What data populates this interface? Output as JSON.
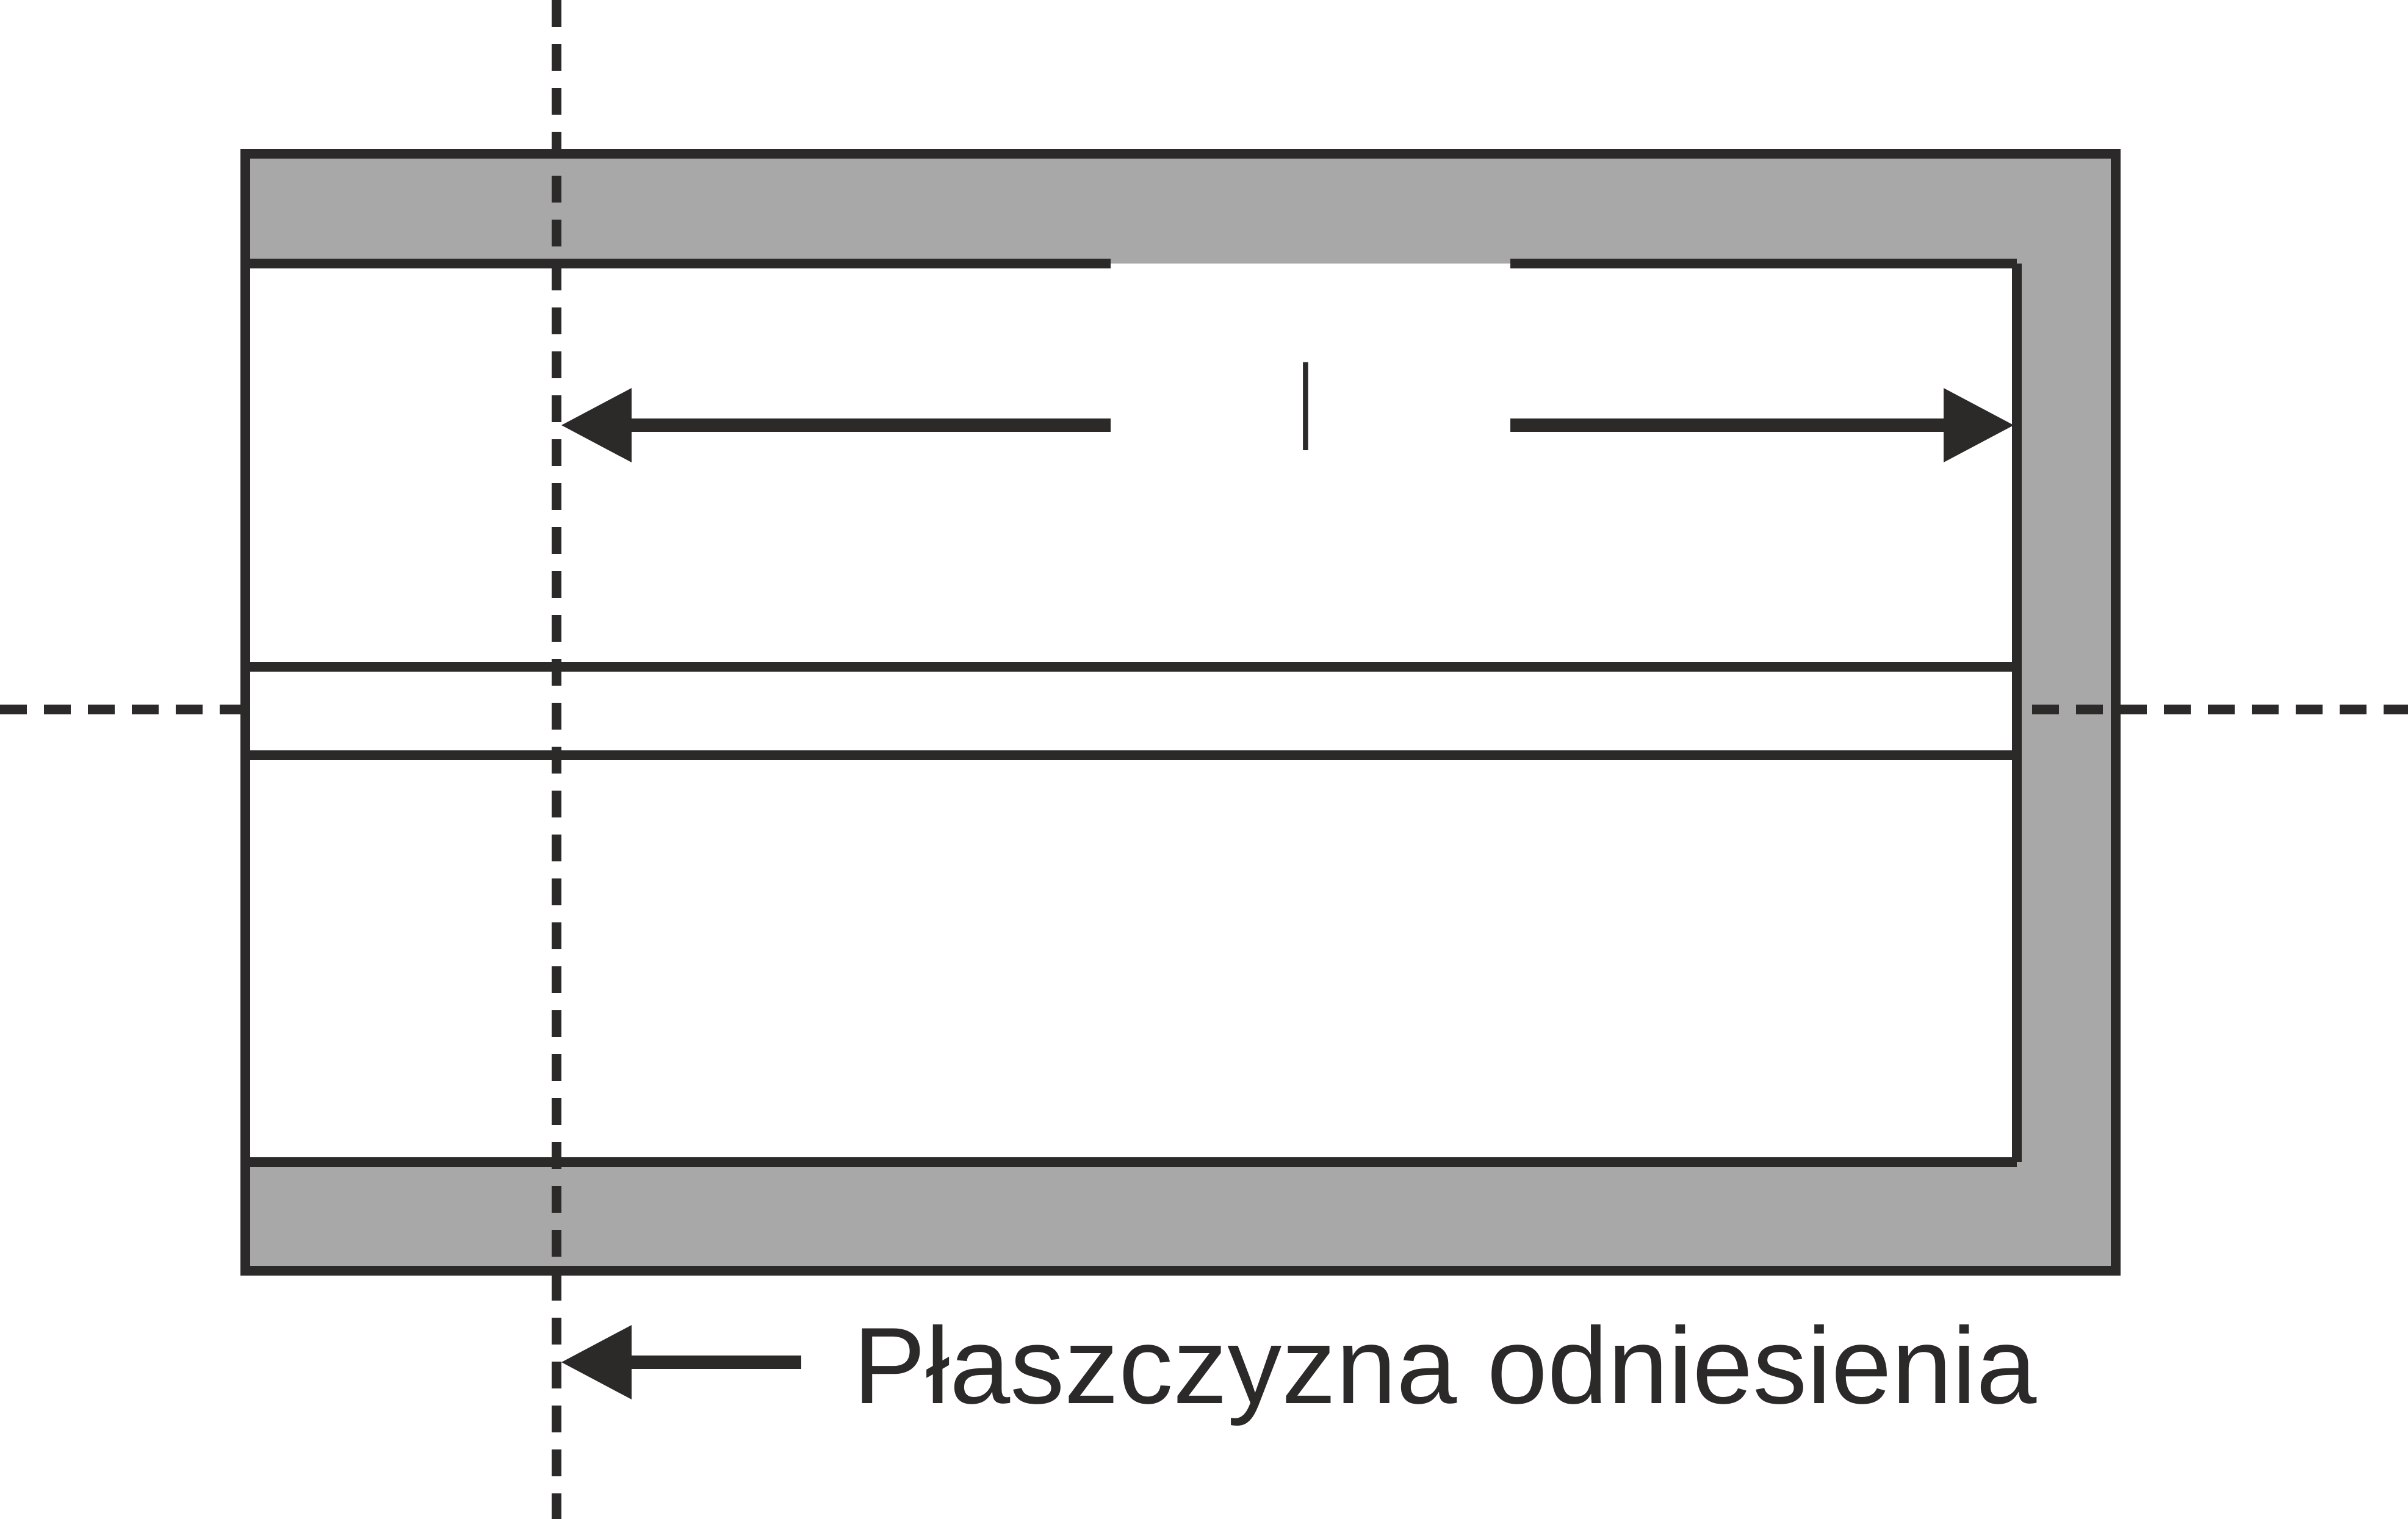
{
  "diagram": {
    "dimension_label": "l",
    "reference_plane_label": "Płaszczyzna odniesienia"
  },
  "colors": {
    "stroke": "#2b2a29",
    "wall_fill": "#a8a8a8",
    "background": "#ffffff"
  }
}
